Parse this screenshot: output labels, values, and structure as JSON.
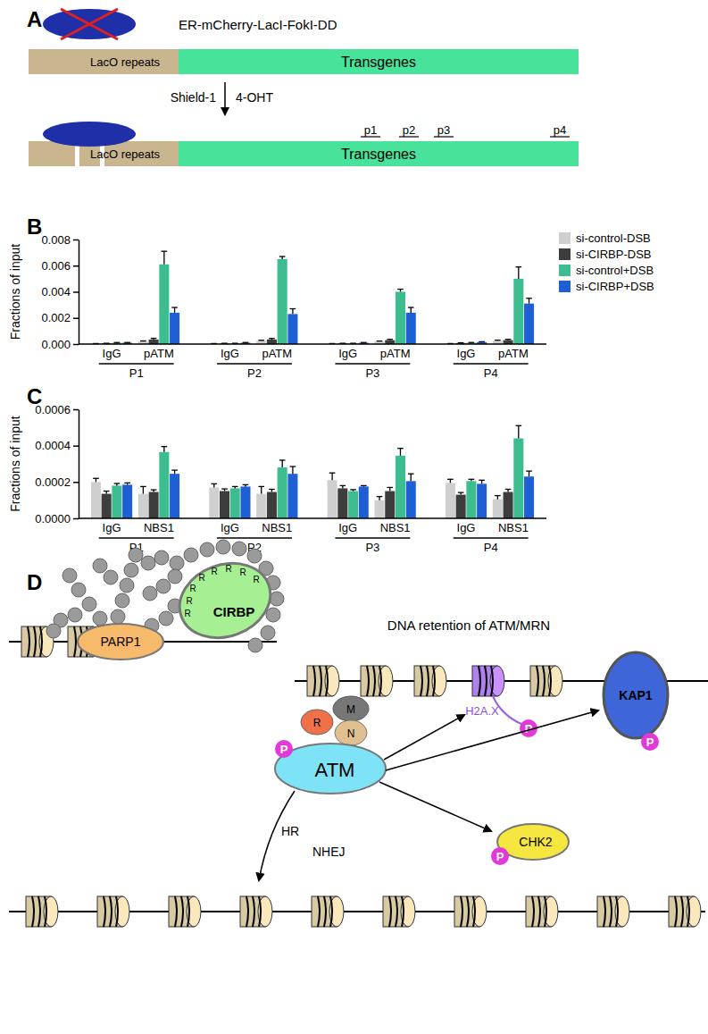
{
  "chart_data": [
    {
      "type": "bar",
      "categories": [
        "IgG",
        "pATM",
        "IgG",
        "pATM",
        "IgG",
        "pATM",
        "IgG",
        "pATM"
      ],
      "groups": [
        "P1",
        "P2",
        "P3",
        "P4"
      ],
      "ylabel": "Fractions of input",
      "ylim": [
        0,
        0.008
      ],
      "yticks": [
        {
          "value": 0,
          "label": "0.000"
        },
        {
          "value": 0.002,
          "label": "0.002"
        },
        {
          "value": 0.004,
          "label": "0.004"
        },
        {
          "value": 0.006,
          "label": "0.006"
        },
        {
          "value": 0.008,
          "label": "0.008"
        }
      ],
      "legend": "top-right",
      "series": [
        {
          "name": "si-control-DSB",
          "color": "#cfcfcf",
          "values": [
            3e-05,
            0.0002,
            3e-05,
            0.00025,
            3e-05,
            0.0002,
            3e-05,
            0.00025
          ],
          "errors": [
            1e-05,
            4e-05,
            1e-05,
            4e-05,
            1e-05,
            3e-05,
            1e-05,
            5e-05
          ]
        },
        {
          "name": "si-CIRBP-DSB",
          "color": "#3d3d3d",
          "values": [
            5e-05,
            0.00035,
            5e-05,
            0.00035,
            5e-05,
            0.0003,
            8e-05,
            0.0003
          ],
          "errors": [
            1e-05,
            9e-05,
            1e-05,
            8e-05,
            1e-05,
            6e-05,
            2e-05,
            6e-05
          ]
        },
        {
          "name": "si-control+DSB",
          "color": "#3dbd8f",
          "values": [
            0.0001,
            0.0061,
            5e-05,
            0.0065,
            5e-05,
            0.004,
            0.0001,
            0.005
          ],
          "errors": [
            2e-05,
            0.001,
            1e-05,
            0.0002,
            1e-05,
            0.0002,
            2e-05,
            0.0009
          ]
        },
        {
          "name": "si-CIRBP+DSB",
          "color": "#1f5fd6",
          "values": [
            0.0001,
            0.0024,
            0.0001,
            0.0023,
            0.0001,
            0.0024,
            0.00015,
            0.0031
          ],
          "errors": [
            2e-05,
            0.0004,
            2e-05,
            0.0004,
            2e-05,
            0.0004,
            3e-05,
            0.0004
          ]
        }
      ]
    },
    {
      "type": "bar",
      "categories": [
        "IgG",
        "NBS1",
        "IgG",
        "NBS1",
        "IgG",
        "NBS1",
        "IgG",
        "NBS1"
      ],
      "groups": [
        "P1",
        "P2",
        "P3",
        "P4"
      ],
      "ylabel": "Fractions of input",
      "ylim": [
        0,
        0.0006
      ],
      "yticks": [
        {
          "value": 0,
          "label": "0.0000"
        },
        {
          "value": 0.0002,
          "label": "0.0002"
        },
        {
          "value": 0.0004,
          "label": "0.0004"
        },
        {
          "value": 0.0006,
          "label": "0.0006"
        }
      ],
      "series": [
        {
          "color": "#cfcfcf",
          "values": [
            0.0002,
            0.000135,
            0.00017,
            0.000135,
            0.00021,
            0.0001,
            0.000195,
            0.000105
          ],
          "errors": [
            2e-05,
            4e-05,
            2e-05,
            4e-05,
            4e-05,
            2e-05,
            2e-05,
            2e-05
          ]
        },
        {
          "color": "#3d3d3d",
          "values": [
            0.000135,
            0.000145,
            0.00015,
            0.000145,
            0.000165,
            0.00015,
            0.00013,
            0.000145
          ],
          "errors": [
            1.5e-05,
            1.2e-05,
            1.2e-05,
            1.5e-05,
            1.5e-05,
            2e-05,
            1.2e-05,
            1.5e-05
          ]
        },
        {
          "color": "#3dbd8f",
          "values": [
            0.00018,
            0.000365,
            0.000165,
            0.00028,
            0.00015,
            0.000345,
            0.000205,
            0.00044
          ],
          "errors": [
            1.2e-05,
            3e-05,
            1e-05,
            4e-05,
            8e-06,
            4e-05,
            1e-05,
            7e-05
          ]
        },
        {
          "color": "#1f5fd6",
          "values": [
            0.000185,
            0.000245,
            0.000175,
            0.000245,
            0.000175,
            0.000205,
            0.00019,
            0.00023
          ],
          "errors": [
            1e-05,
            2e-05,
            1e-05,
            4e-05,
            5e-06,
            4e-05,
            2e-05,
            3e-05
          ]
        }
      ]
    }
  ],
  "figure": {
    "panel_labels": [
      "A",
      "B",
      "C",
      "D"
    ],
    "diagram_a": {
      "fusion": "ER-mCherry-LacI-FokI-DD",
      "laco": "LacO repeats",
      "transgenes": "Transgenes",
      "treatments": [
        "Shield-1",
        "4-OHT"
      ],
      "primers": [
        "p1",
        "p2",
        "p3",
        "p4"
      ]
    },
    "diagram_d": {
      "parp1": "PARP1",
      "cirbp": "CIRBP",
      "arginines": [
        "R",
        "R",
        "R",
        "R",
        "R",
        "R",
        "R",
        "R"
      ],
      "retention": "DNA retention of ATM/MRN",
      "atm": "ATM",
      "mrn": [
        "R",
        "M",
        "N"
      ],
      "phospho": "P",
      "h2ax": "H2A.X",
      "kap1": "KAP1",
      "chk2": "CHK2",
      "repair": [
        "HR",
        "NHEJ"
      ]
    }
  }
}
